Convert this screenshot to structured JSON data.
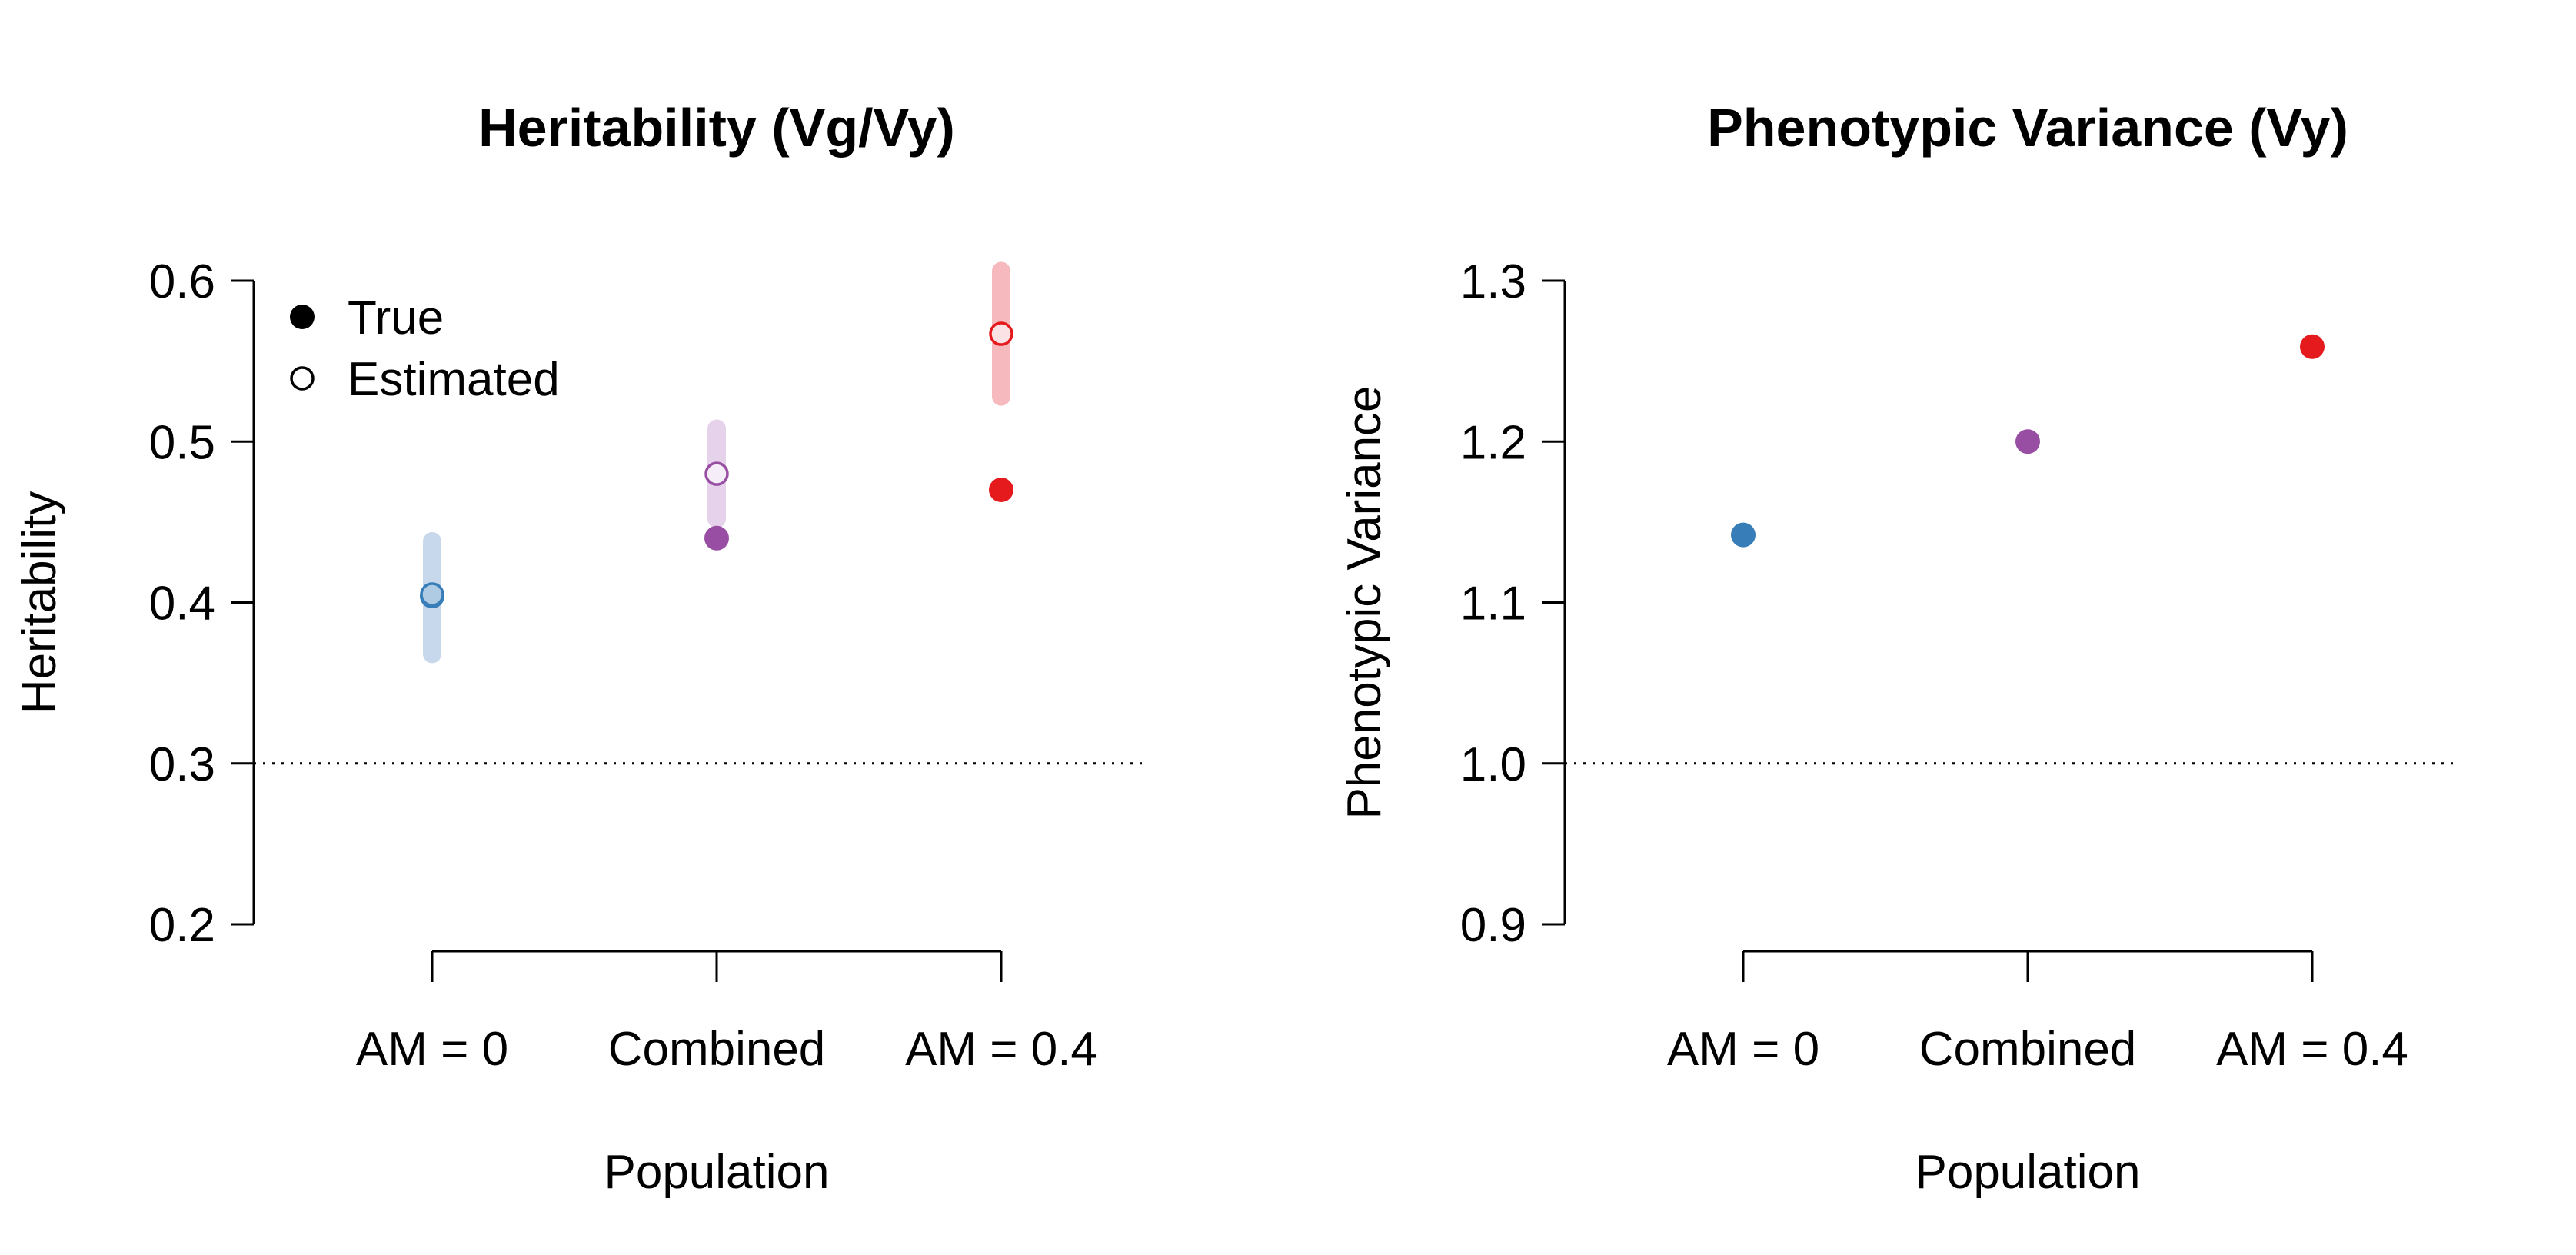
{
  "chart_data": [
    {
      "type": "scatter",
      "title": "Heritability (Vg/Vy)",
      "xlabel": "Population",
      "ylabel": "Heritability",
      "categories": [
        "AM = 0",
        "Combined",
        "AM = 0.4"
      ],
      "ylim": [
        0.2,
        0.6
      ],
      "yticks": [
        "0.2",
        "0.3",
        "0.4",
        "0.5",
        "0.6"
      ],
      "reference_line": {
        "y": 0.3,
        "style": "dotted"
      },
      "colors": [
        "#377eb8",
        "#984ea3",
        "#e41a1c"
      ],
      "band_colors": [
        "#c7d8ec",
        "#e6d2ea",
        "#f6b9bd"
      ],
      "series": [
        {
          "name": "True",
          "marker": "filled-circle",
          "values": [
            0.404,
            0.44,
            0.47
          ]
        },
        {
          "name": "Estimated",
          "marker": "open-circle",
          "values": [
            0.405,
            0.48,
            0.567
          ],
          "interval_low": [
            0.368,
            0.452,
            0.528
          ],
          "interval_high": [
            0.438,
            0.508,
            0.606
          ]
        }
      ],
      "legend": {
        "position": "top-left",
        "entries": [
          {
            "label": "True",
            "marker": "filled-circle"
          },
          {
            "label": "Estimated",
            "marker": "open-circle"
          }
        ]
      }
    },
    {
      "type": "scatter",
      "title": "Phenotypic Variance (Vy)",
      "xlabel": "Population",
      "ylabel": "Phenotypic Variance",
      "categories": [
        "AM = 0",
        "Combined",
        "AM = 0.4"
      ],
      "ylim": [
        0.9,
        1.3
      ],
      "yticks": [
        "0.9",
        "1.0",
        "1.1",
        "1.2",
        "1.3"
      ],
      "reference_line": {
        "y": 1.0,
        "style": "dotted"
      },
      "colors": [
        "#377eb8",
        "#984ea3",
        "#e41a1c"
      ],
      "series": [
        {
          "marker": "filled-circle",
          "values": [
            1.142,
            1.2,
            1.259
          ]
        }
      ]
    }
  ]
}
